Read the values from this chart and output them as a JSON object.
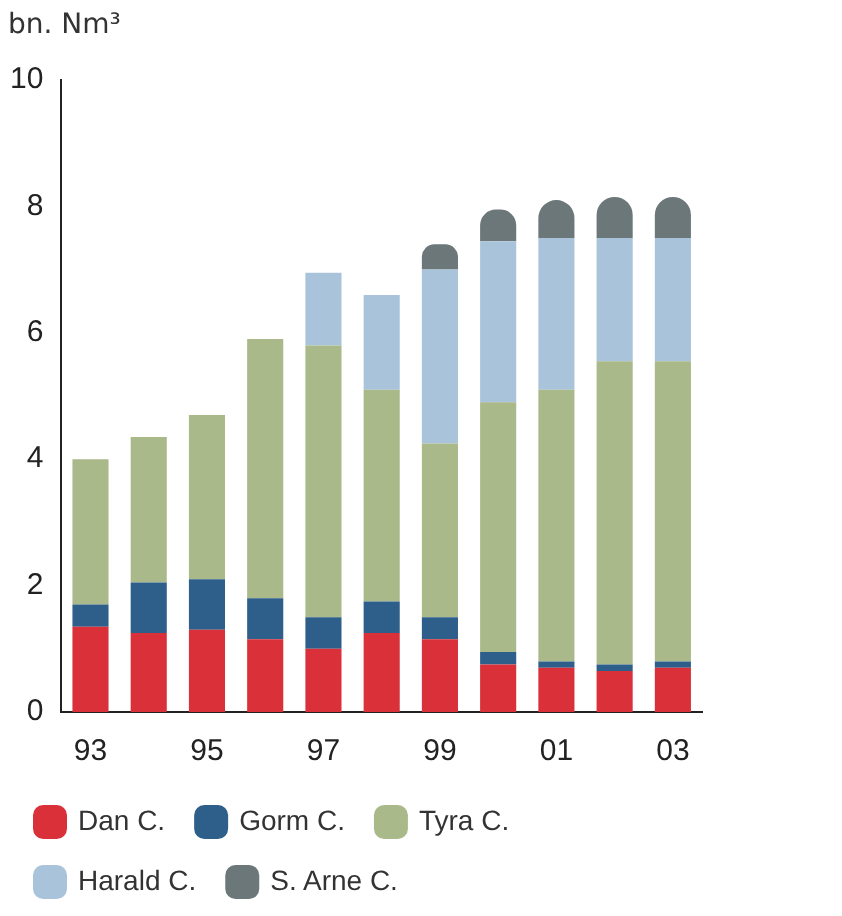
{
  "chart_data": {
    "type": "bar",
    "stacked": true,
    "ylabel": "bn. Nm³",
    "categories": [
      "93",
      null,
      "95",
      null,
      "97",
      null,
      "99",
      null,
      "01",
      null,
      "03"
    ],
    "ylim": [
      0,
      10
    ],
    "yticks": [
      0,
      2,
      4,
      6,
      8,
      10
    ],
    "grid": false,
    "legend": "bottom",
    "series": [
      {
        "name": "Dan C.",
        "color": "#d9303a",
        "values": [
          1.35,
          1.25,
          1.3,
          1.15,
          1.0,
          1.25,
          1.15,
          0.75,
          0.7,
          0.65,
          0.7
        ]
      },
      {
        "name": "Gorm C.",
        "color": "#2e5f8a",
        "values": [
          0.35,
          0.8,
          0.8,
          0.65,
          0.5,
          0.5,
          0.35,
          0.2,
          0.1,
          0.1,
          0.1
        ]
      },
      {
        "name": "Tyra C.",
        "color": "#a9b98a",
        "values": [
          2.3,
          2.3,
          2.6,
          4.1,
          4.3,
          3.35,
          2.75,
          3.95,
          4.3,
          4.8,
          4.75
        ]
      },
      {
        "name": "Harald C.",
        "color": "#a9c3da",
        "values": [
          0,
          0,
          0,
          0,
          1.15,
          1.5,
          2.75,
          2.55,
          2.4,
          1.95,
          1.95
        ]
      },
      {
        "name": "S. Arne C.",
        "color": "#6b7779",
        "values": [
          0,
          0,
          0,
          0,
          0,
          0,
          0.4,
          0.5,
          0.6,
          0.65,
          0.65
        ]
      }
    ]
  }
}
